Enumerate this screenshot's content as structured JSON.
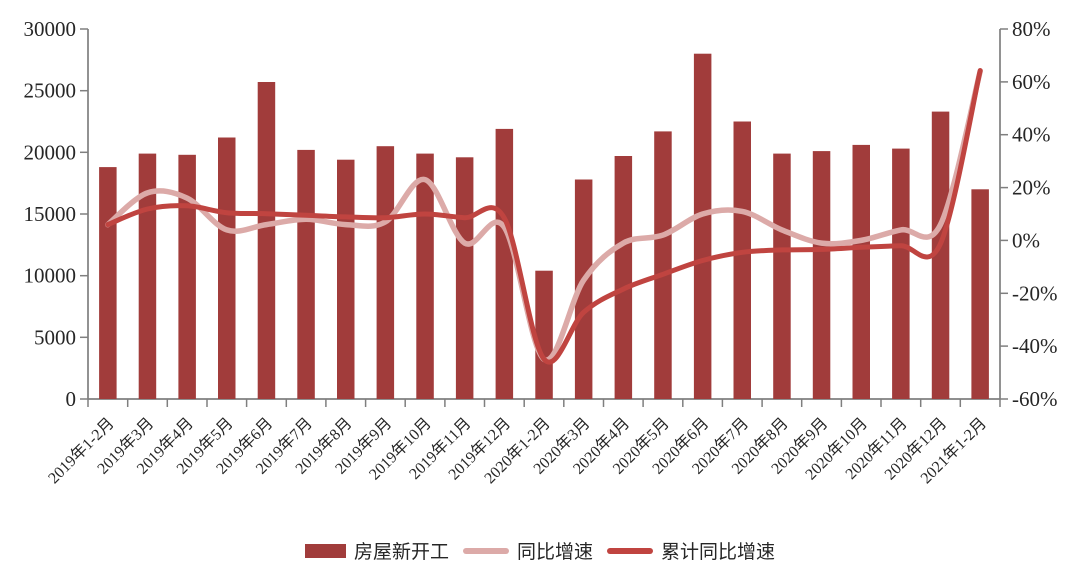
{
  "chart_data": {
    "type": "bar",
    "title": "",
    "categories": [
      "2019年1-2月",
      "2019年3月",
      "2019年4月",
      "2019年5月",
      "2019年6月",
      "2019年7月",
      "2019年8月",
      "2019年9月",
      "2019年10月",
      "2019年11月",
      "2019年12月",
      "2020年1-2月",
      "2020年3月",
      "2020年4月",
      "2020年5月",
      "2020年6月",
      "2020年7月",
      "2020年8月",
      "2020年9月",
      "2020年10月",
      "2020年11月",
      "2020年12月",
      "2021年1-2月"
    ],
    "series": [
      {
        "name": "房屋新开工",
        "type": "bar",
        "axis": "left",
        "color": "#A13C3B",
        "values": [
          18800,
          19900,
          19800,
          21200,
          25700,
          20200,
          19400,
          20500,
          19900,
          19600,
          21900,
          10400,
          17800,
          19700,
          21700,
          28000,
          22500,
          19900,
          20100,
          20600,
          20300,
          23300,
          17000
        ]
      },
      {
        "name": "同比增速",
        "type": "line",
        "axis": "right",
        "color": "#DCAAA8",
        "values": [
          6,
          18,
          16,
          4,
          6,
          8,
          6,
          7,
          23,
          -1,
          5,
          -45,
          -15,
          -1,
          2,
          10,
          11,
          4,
          -1,
          0,
          4,
          6,
          64
        ]
      },
      {
        "name": "累计同比增速",
        "type": "line",
        "axis": "right",
        "color": "#C04440",
        "values": [
          6,
          11.9,
          13.1,
          10.5,
          10.1,
          9.5,
          8.9,
          8.6,
          10,
          8.6,
          8.5,
          -44.9,
          -27.2,
          -18.4,
          -12.8,
          -7.6,
          -4.5,
          -3.6,
          -3.4,
          -2.6,
          -2,
          -1.2,
          64.3
        ]
      }
    ],
    "left_axis": {
      "min": 0,
      "max": 30000,
      "step": 5000,
      "tick_labels": [
        "0",
        "5000",
        "10000",
        "15000",
        "20000",
        "25000",
        "30000"
      ]
    },
    "right_axis": {
      "min": -60,
      "max": 80,
      "step": 20,
      "unit": "%",
      "tick_labels": [
        "-60%",
        "-40%",
        "-20%",
        "0%",
        "20%",
        "40%",
        "60%",
        "80%"
      ]
    },
    "grid": false,
    "legend_position": "bottom",
    "x_tick_rotation": 45
  },
  "colors": {
    "axis": "#7F7F7F",
    "text": "#262626",
    "background": "#FFFFFF"
  }
}
